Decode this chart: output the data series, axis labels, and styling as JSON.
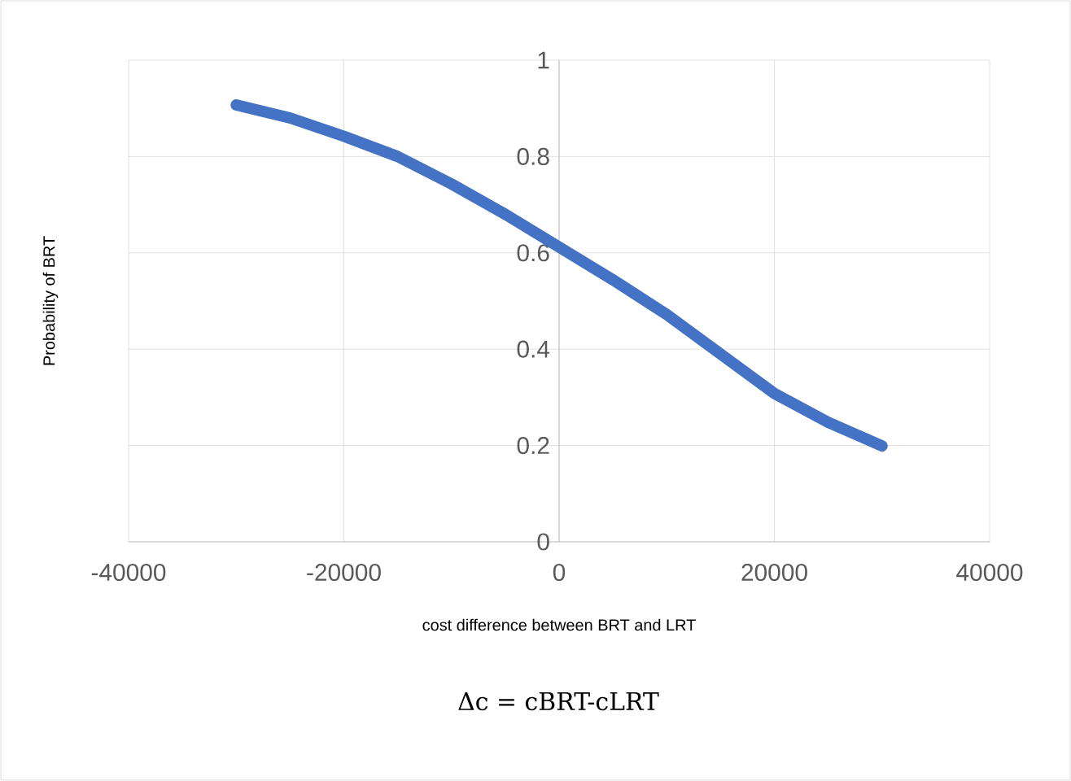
{
  "chart_data": {
    "type": "line",
    "xlabel": "cost difference between BRT and LRT",
    "ylabel": "Probability of  BRT",
    "annotations": [
      "Δc = cBRT-cLRT"
    ],
    "x": [
      -30000,
      -25000,
      -20000,
      -15000,
      -10000,
      -5000,
      0,
      5000,
      10000,
      15000,
      20000,
      25000,
      30000
    ],
    "series": [
      {
        "color": "#4472c4",
        "values": [
          0.907,
          0.88,
          0.842,
          0.8,
          0.743,
          0.68,
          0.612,
          0.544,
          0.472,
          0.39,
          0.308,
          0.248,
          0.199
        ]
      }
    ],
    "xlim": [
      -40000,
      40000
    ],
    "xticks": [
      -40000,
      -20000,
      0,
      20000,
      40000
    ],
    "ylim": [
      0,
      1
    ],
    "yticks": [
      0,
      0.2,
      0.4,
      0.6,
      0.8,
      1
    ],
    "grid": true,
    "marker": "none",
    "line_style": "solid"
  }
}
